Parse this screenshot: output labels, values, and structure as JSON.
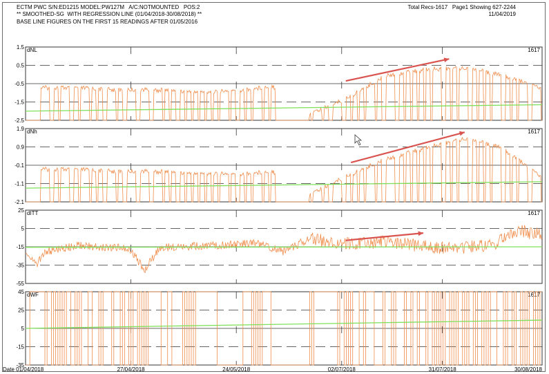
{
  "header": {
    "line1": "ECTM PWC S/N:ED1215 MODEL:PW127M   A/C:NOTMOUNTED   POS:2",
    "line2": "** SMOOTHED-SG  WITH REGRESSION LINE (01/04/2018-30/08/2018) **",
    "line3": "BASE LINE FIGURES ON THE FIRST 15 READINGS AFTER 01/05/2016",
    "records": "Total Recs-1617   Page1 Showing 627-2244",
    "date": "11/04/2019"
  },
  "colors": {
    "series": "#f08c4a",
    "regression": "#7ee05a",
    "trend_arrow": "#d9534f",
    "grid": "#333333"
  },
  "chart_data": [
    {
      "type": "line",
      "ylabel": "dNL",
      "count_label": "1617",
      "ylim": [
        -2.5,
        1.5
      ],
      "yticks": [
        "1.5",
        "0.5",
        "-0.5",
        "-1.5",
        "-2.5"
      ],
      "pattern": "pulse",
      "series": [
        {
          "role": "smoothed",
          "points": [
            [
              0,
              -2.5
            ],
            [
              0.03,
              -0.6
            ],
            [
              0.1,
              -0.6
            ],
            [
              0.16,
              -0.7
            ],
            [
              0.24,
              -0.7
            ],
            [
              0.3,
              -0.8
            ],
            [
              0.36,
              -0.8
            ],
            [
              0.4,
              -0.8
            ],
            [
              0.48,
              -0.5
            ],
            [
              0.52,
              -2.4
            ],
            [
              0.62,
              -1.2
            ],
            [
              0.7,
              0.1
            ],
            [
              0.78,
              0.4
            ],
            [
              0.85,
              0.5
            ],
            [
              0.92,
              0.1
            ],
            [
              1,
              -0.6
            ]
          ]
        },
        {
          "role": "regression",
          "points": [
            [
              0,
              -2.0
            ],
            [
              1,
              -1.65
            ]
          ]
        }
      ],
      "trend_arrow": [
        [
          0.62,
          -0.35
        ],
        [
          0.82,
          0.85
        ]
      ]
    },
    {
      "type": "line",
      "ylabel": "dNh",
      "count_label": "1617",
      "ylim": [
        -2.1,
        1.9
      ],
      "yticks": [
        "1.9",
        "0.9",
        "-0.1",
        "-1.1",
        "-2.1"
      ],
      "pattern": "pulse",
      "series": [
        {
          "role": "smoothed",
          "points": [
            [
              0,
              -2.1
            ],
            [
              0.03,
              -0.2
            ],
            [
              0.1,
              -0.2
            ],
            [
              0.16,
              -0.3
            ],
            [
              0.24,
              -0.3
            ],
            [
              0.3,
              -0.4
            ],
            [
              0.36,
              -0.4
            ],
            [
              0.4,
              -0.5
            ],
            [
              0.48,
              -0.3
            ],
            [
              0.52,
              -2.0
            ],
            [
              0.62,
              -0.6
            ],
            [
              0.7,
              0.4
            ],
            [
              0.78,
              1.0
            ],
            [
              0.85,
              1.5
            ],
            [
              0.92,
              1.0
            ],
            [
              1,
              -0.6
            ]
          ]
        },
        {
          "role": "regression",
          "points": [
            [
              0,
              -1.35
            ],
            [
              1,
              -1.0
            ]
          ]
        }
      ],
      "trend_arrow": [
        [
          0.63,
          0.05
        ],
        [
          0.85,
          1.7
        ]
      ]
    },
    {
      "type": "line",
      "ylabel": "dITT",
      "count_label": "1617",
      "ylim": [
        -55,
        25
      ],
      "yticks": [
        "25",
        "5",
        "-15",
        "-35",
        "-55"
      ],
      "pattern": "noise",
      "series": [
        {
          "role": "smoothed",
          "points": [
            [
              0,
              -18
            ],
            [
              0.02,
              -35
            ],
            [
              0.04,
              -20
            ],
            [
              0.1,
              -14
            ],
            [
              0.2,
              -16
            ],
            [
              0.23,
              -40
            ],
            [
              0.26,
              -16
            ],
            [
              0.35,
              -14
            ],
            [
              0.45,
              -11
            ],
            [
              0.5,
              -20
            ],
            [
              0.55,
              -6
            ],
            [
              0.62,
              -12
            ],
            [
              0.7,
              -9
            ],
            [
              0.8,
              -17
            ],
            [
              0.9,
              -14
            ],
            [
              0.95,
              3
            ],
            [
              1,
              -2
            ]
          ]
        },
        {
          "role": "regression",
          "points": [
            [
              0,
              -15.5
            ],
            [
              1,
              -15
            ]
          ]
        }
      ],
      "trend_arrow": [
        [
          0.62,
          -8
        ],
        [
          0.77,
          0
        ]
      ]
    },
    {
      "type": "line",
      "ylabel": "dWF",
      "count_label": "1617",
      "ylim": [
        -35,
        45
      ],
      "yticks": [
        "45",
        "25",
        "5",
        "-15",
        "-35"
      ],
      "pattern": "square",
      "series": [
        {
          "role": "smoothed",
          "points": [
            [
              0,
              -35
            ],
            [
              1,
              45
            ]
          ]
        },
        {
          "role": "regression",
          "points": [
            [
              0,
              5
            ],
            [
              1,
              14
            ]
          ]
        }
      ]
    }
  ],
  "xaxis": {
    "ticks": [
      "Date 01/04/2018",
      "27/04/2018",
      "24/05/2018",
      "02/07/2018",
      "31/07/2018",
      "30/08/2018"
    ],
    "positions": [
      0,
      0.204,
      0.408,
      0.612,
      0.807,
      1.0
    ]
  }
}
